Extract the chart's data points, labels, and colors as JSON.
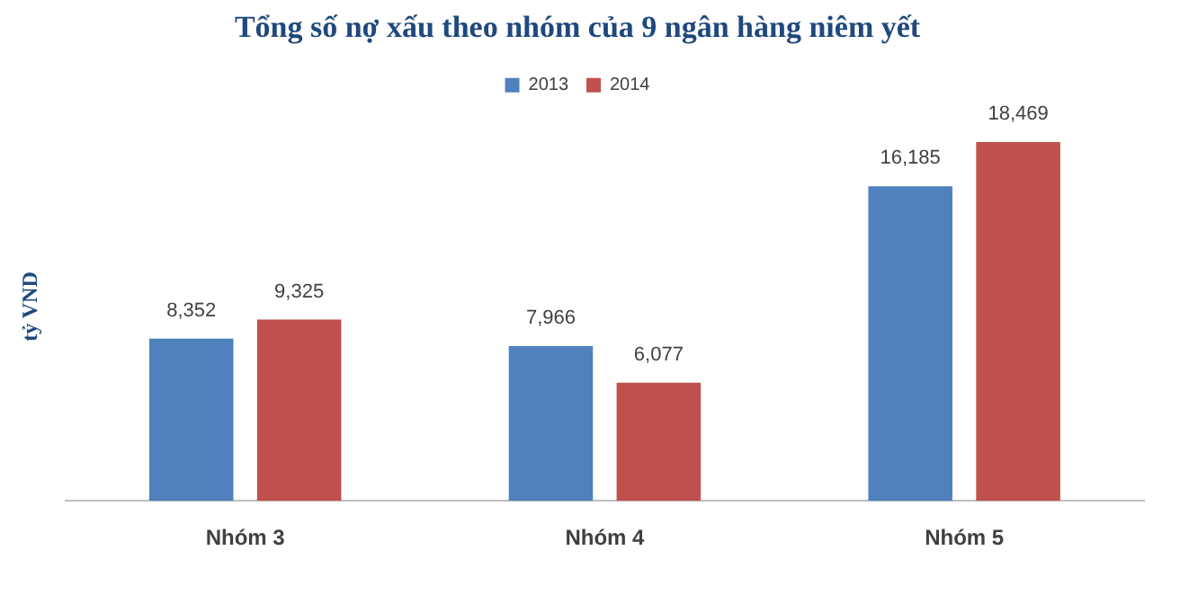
{
  "chart_data": {
    "type": "bar",
    "title": "Tổng số nợ xấu theo nhóm của 9 ngân hàng niêm yết",
    "ylabel": "tỷ VND",
    "categories": [
      "Nhóm 3",
      "Nhóm 4",
      "Nhóm 5"
    ],
    "series": [
      {
        "name": "2013",
        "color": "#4f81bd",
        "values": [
          8352,
          7966,
          16185
        ],
        "value_labels": [
          "8,352",
          "7,966",
          "16,185"
        ]
      },
      {
        "name": "2014",
        "color": "#c0504d",
        "values": [
          9325,
          6077,
          18469
        ],
        "value_labels": [
          "9,325",
          "6,077",
          "18,469"
        ]
      }
    ],
    "grid": false,
    "legend": "top",
    "tick_labels": "x"
  }
}
